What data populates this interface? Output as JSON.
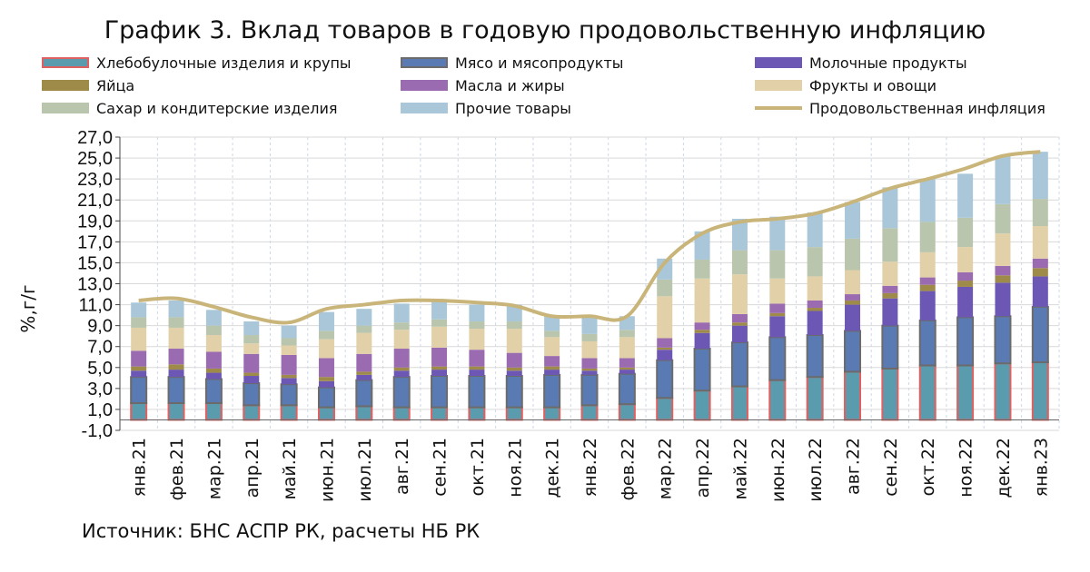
{
  "chart_data": {
    "type": "bar",
    "stacked": true,
    "title": "График 3. Вклад товаров в годовую продовольственную инфляцию",
    "ylabel": "%,г/г",
    "xlabel": "",
    "ylim": [
      -1.0,
      27.0
    ],
    "yticks": [
      "-1,0",
      "1,0",
      "3,0",
      "5,0",
      "7,0",
      "9,0",
      "11,0",
      "13,0",
      "15,0",
      "17,0",
      "19,0",
      "21,0",
      "23,0",
      "25,0",
      "27,0"
    ],
    "grid": true,
    "legend_position": "top",
    "categories": [
      "янв.21",
      "фев.21",
      "мар.21",
      "апр.21",
      "май.21",
      "июн.21",
      "июл.21",
      "авг.21",
      "сен.21",
      "окт.21",
      "ноя.21",
      "дек.21",
      "янв.22",
      "фев.22",
      "мар.22",
      "апр.22",
      "май.22",
      "июн.22",
      "июл.22",
      "авг.22",
      "сен.22",
      "окт.22",
      "ноя.22",
      "дек.22",
      "янв.23"
    ],
    "series": [
      {
        "name": "Хлебобулочные изделия и крупы",
        "kind": "bar",
        "color": "#5b9bae",
        "border": "#e06060",
        "values": [
          1.6,
          1.6,
          1.6,
          1.4,
          1.4,
          1.2,
          1.3,
          1.2,
          1.2,
          1.2,
          1.2,
          1.2,
          1.4,
          1.5,
          2.1,
          2.8,
          3.2,
          3.8,
          4.1,
          4.6,
          4.9,
          5.2,
          5.2,
          5.4,
          5.5
        ]
      },
      {
        "name": "Мясо и мясопродукты",
        "kind": "bar",
        "color": "#5a7ab3",
        "border": "#6b6b6b",
        "values": [
          2.5,
          2.5,
          2.3,
          2.1,
          2.0,
          1.9,
          2.5,
          2.9,
          3.0,
          3.0,
          3.0,
          3.1,
          2.9,
          2.9,
          3.6,
          4.0,
          4.2,
          4.1,
          4.0,
          3.9,
          4.1,
          4.3,
          4.6,
          4.5,
          5.3
        ]
      },
      {
        "name": "Молочные продукты",
        "kind": "bar",
        "color": "#6c58b4",
        "border": "",
        "values": [
          0.6,
          0.7,
          0.6,
          0.7,
          0.6,
          0.6,
          0.5,
          0.6,
          0.6,
          0.6,
          0.5,
          0.5,
          0.4,
          0.4,
          1.0,
          1.5,
          1.6,
          2.0,
          2.3,
          2.5,
          2.6,
          2.8,
          2.9,
          3.2,
          2.9
        ]
      },
      {
        "name": "Яйца",
        "kind": "bar",
        "color": "#9e8b4a",
        "border": "",
        "values": [
          0.4,
          0.5,
          0.4,
          0.3,
          0.3,
          0.4,
          0.3,
          0.3,
          0.3,
          0.3,
          0.3,
          0.3,
          0.2,
          0.2,
          0.2,
          0.3,
          0.3,
          0.3,
          0.3,
          0.4,
          0.5,
          0.6,
          0.6,
          0.7,
          0.8
        ]
      },
      {
        "name": "Масла и жиры",
        "kind": "bar",
        "color": "#9a6bb0",
        "border": "",
        "values": [
          1.5,
          1.5,
          1.6,
          1.8,
          1.9,
          1.8,
          1.7,
          1.8,
          1.8,
          1.6,
          1.4,
          1.0,
          1.0,
          0.9,
          0.9,
          0.7,
          0.8,
          0.9,
          0.7,
          0.6,
          0.7,
          0.7,
          0.8,
          0.9,
          0.9
        ]
      },
      {
        "name": "Фрукты и овощи",
        "kind": "bar",
        "color": "#e2d0a8",
        "border": "",
        "values": [
          2.2,
          2.0,
          1.6,
          1.0,
          0.9,
          1.8,
          2.0,
          1.8,
          2.0,
          2.0,
          2.3,
          1.8,
          1.6,
          2.0,
          4.0,
          4.2,
          3.8,
          2.4,
          2.3,
          2.3,
          2.3,
          2.4,
          2.4,
          3.1,
          3.1
        ]
      },
      {
        "name": "Сахар и кондитерские изделия",
        "kind": "bar",
        "color": "#b9c6ad",
        "border": "",
        "values": [
          1.0,
          1.0,
          0.9,
          0.8,
          0.7,
          0.8,
          0.7,
          0.7,
          0.7,
          0.7,
          0.7,
          0.6,
          0.7,
          0.7,
          1.6,
          1.8,
          2.3,
          2.7,
          2.8,
          3.0,
          3.2,
          2.9,
          2.8,
          2.8,
          2.6
        ]
      },
      {
        "name": "Прочие товары",
        "kind": "bar",
        "color": "#a9c7d8",
        "border": "",
        "values": [
          1.4,
          1.6,
          1.5,
          1.3,
          1.2,
          1.8,
          1.6,
          1.8,
          1.7,
          1.6,
          1.6,
          1.4,
          1.6,
          1.3,
          2.0,
          2.7,
          3.0,
          3.2,
          3.3,
          3.5,
          3.9,
          4.1,
          4.2,
          4.6,
          4.5
        ]
      },
      {
        "name": "Продовольственная инфляция",
        "kind": "line",
        "color": "#c9b57a",
        "border": "",
        "values": [
          11.4,
          11.6,
          10.8,
          9.8,
          9.3,
          10.6,
          11.0,
          11.4,
          11.4,
          11.2,
          10.9,
          9.9,
          9.9,
          9.9,
          15.0,
          17.8,
          18.9,
          19.2,
          19.7,
          20.8,
          22.1,
          23.0,
          24.0,
          25.2,
          25.6
        ]
      }
    ]
  },
  "source": "Источник: БНС АСПР РК, расчеты НБ РК"
}
